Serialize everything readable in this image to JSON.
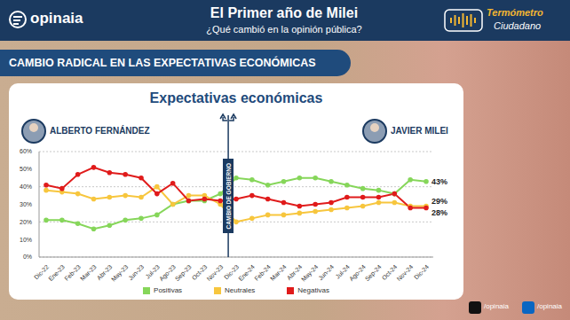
{
  "chart_data": {
    "type": "line",
    "title": "Expectativas económicas",
    "header": {
      "brand": "opinaia",
      "title": "El Primer año de Milei",
      "subtitle": "¿Qué cambió en la opinión pública?",
      "badge": [
        "Termómetro",
        "Ciudadano"
      ]
    },
    "banner": "CAMBIO RADICAL EN LAS EXPECTATIVAS ECONÓMICAS",
    "left_label": "ALBERTO FERNÁNDEZ",
    "right_label": "JAVIER MILEI",
    "annotation": "CAMBIO DE GOBIERNO",
    "footer": [
      "/opinaia",
      "/opinaia"
    ],
    "categories": [
      "Dic-22",
      "Ene-23",
      "Feb-23",
      "Mar-23",
      "Abr-23",
      "May-23",
      "Jun-23",
      "Jul-23",
      "Ago-23",
      "Sep-23",
      "Oct-23",
      "Nov-23",
      "Dic-23",
      "Ene-24",
      "Feb-24",
      "Mar-24",
      "Abr-24",
      "May-24",
      "Jun-24",
      "Jul-24",
      "Ago-24",
      "Sep-24",
      "Oct-24",
      "Nov-24",
      "Dic-24"
    ],
    "series": [
      {
        "name": "Positivas",
        "color": "#86d65a",
        "values": [
          21,
          21,
          19,
          16,
          18,
          21,
          22,
          24,
          30,
          32,
          32,
          36,
          45,
          44,
          41,
          43,
          45,
          45,
          43,
          41,
          39,
          38,
          36,
          44,
          43
        ],
        "value_labels": [
          null,
          null,
          null,
          null,
          null,
          null,
          null,
          null,
          null,
          null,
          null,
          null,
          null,
          null,
          null,
          null,
          null,
          null,
          null,
          null,
          null,
          null,
          null,
          null,
          "43%"
        ]
      },
      {
        "name": "Neutrales",
        "color": "#f7c63e",
        "values": [
          38,
          37,
          36,
          33,
          34,
          35,
          34,
          40,
          30,
          35,
          35,
          30,
          20,
          22,
          24,
          24,
          25,
          26,
          27,
          28,
          29,
          31,
          31,
          29,
          29
        ],
        "value_labels": [
          null,
          null,
          null,
          null,
          null,
          null,
          null,
          null,
          null,
          null,
          null,
          null,
          null,
          null,
          null,
          null,
          null,
          null,
          null,
          null,
          null,
          null,
          null,
          null,
          "29%"
        ]
      },
      {
        "name": "Negativas",
        "color": "#e01b1b",
        "values": [
          41,
          39,
          47,
          51,
          48,
          47,
          45,
          36,
          42,
          32,
          33,
          32,
          33,
          35,
          33,
          31,
          29,
          30,
          31,
          34,
          34,
          34,
          36,
          28,
          28
        ],
        "value_labels": [
          null,
          null,
          null,
          null,
          null,
          null,
          null,
          null,
          null,
          null,
          null,
          null,
          null,
          null,
          null,
          null,
          null,
          null,
          null,
          null,
          null,
          null,
          null,
          null,
          "28%"
        ]
      }
    ],
    "ylim": [
      0,
      60
    ],
    "yticks": [
      {
        "value": 0,
        "label": "0%"
      },
      {
        "value": 10,
        "label": "10%"
      },
      {
        "value": 20,
        "label": "20%"
      },
      {
        "value": 30,
        "label": "30%"
      },
      {
        "value": 40,
        "label": "40%"
      },
      {
        "value": 50,
        "label": "50%"
      },
      {
        "value": 60,
        "label": "60%"
      }
    ],
    "grid": true,
    "marker": "circle"
  }
}
